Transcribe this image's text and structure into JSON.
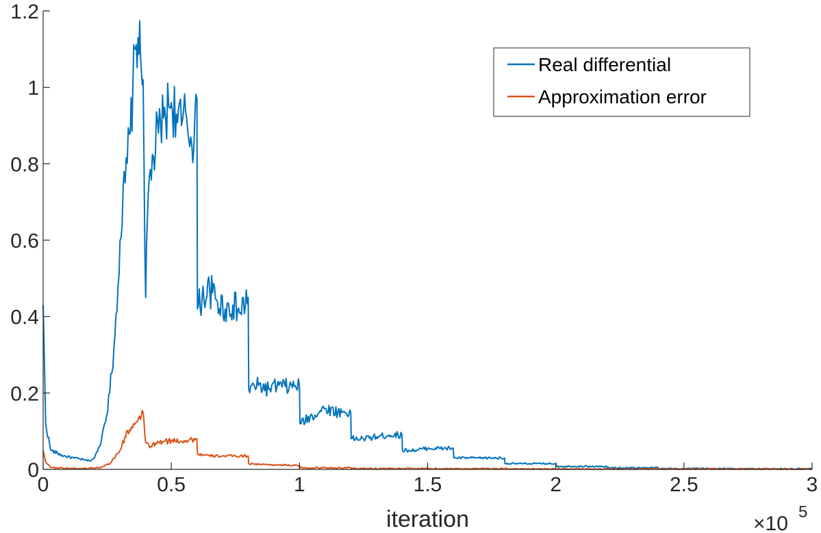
{
  "chart_data": {
    "type": "line",
    "title": "",
    "xlabel": "iteration",
    "ylabel": "",
    "xlim": [
      0,
      300000
    ],
    "ylim": [
      0,
      1.2
    ],
    "x_ticks": [
      0,
      50000,
      100000,
      150000,
      200000,
      250000,
      300000
    ],
    "x_tick_labels": [
      "0",
      "0.5",
      "1",
      "1.5",
      "2",
      "2.5",
      "3"
    ],
    "x_multiplier": {
      "base": "×10",
      "exponent": "5"
    },
    "y_ticks": [
      0,
      0.2,
      0.4,
      0.6,
      0.8,
      1.0,
      1.2
    ],
    "y_tick_labels": [
      "0",
      "0.2",
      "0.4",
      "0.6",
      "0.8",
      "1",
      "1.2"
    ],
    "grid": false,
    "legend_position": "top-right",
    "series": [
      {
        "name": "Real differential",
        "color": "#0072BD",
        "points": [
          [
            0,
            0.43
          ],
          [
            1000,
            0.12
          ],
          [
            3000,
            0.05
          ],
          [
            8000,
            0.035
          ],
          [
            12000,
            0.03
          ],
          [
            16000,
            0.025
          ],
          [
            18000,
            0.022
          ],
          [
            20000,
            0.03
          ],
          [
            22000,
            0.06
          ],
          [
            24000,
            0.12
          ],
          [
            26000,
            0.2
          ],
          [
            28000,
            0.35
          ],
          [
            30000,
            0.6
          ],
          [
            32000,
            0.75
          ],
          [
            34000,
            0.88
          ],
          [
            35000,
            1.0
          ],
          [
            36000,
            1.1
          ],
          [
            37000,
            1.13
          ],
          [
            38000,
            1.08
          ],
          [
            39000,
            1.02
          ],
          [
            40000,
            0.45
          ],
          [
            41000,
            0.72
          ],
          [
            43000,
            0.82
          ],
          [
            45000,
            0.88
          ],
          [
            47000,
            0.92
          ],
          [
            49000,
            0.95
          ],
          [
            50000,
            0.96
          ],
          [
            52000,
            0.93
          ],
          [
            54000,
            0.9
          ],
          [
            56000,
            0.92
          ],
          [
            58000,
            0.85
          ],
          [
            60000,
            0.97
          ],
          [
            60200,
            0.42
          ],
          [
            62000,
            0.45
          ],
          [
            65000,
            0.47
          ],
          [
            68000,
            0.44
          ],
          [
            71000,
            0.42
          ],
          [
            74000,
            0.43
          ],
          [
            77000,
            0.41
          ],
          [
            80000,
            0.45
          ],
          [
            80200,
            0.21
          ],
          [
            84000,
            0.22
          ],
          [
            88000,
            0.21
          ],
          [
            92000,
            0.22
          ],
          [
            96000,
            0.215
          ],
          [
            100000,
            0.22
          ],
          [
            100200,
            0.12
          ],
          [
            105000,
            0.14
          ],
          [
            110000,
            0.16
          ],
          [
            115000,
            0.15
          ],
          [
            120000,
            0.15
          ],
          [
            120200,
            0.08
          ],
          [
            125000,
            0.08
          ],
          [
            130000,
            0.085
          ],
          [
            135000,
            0.09
          ],
          [
            140000,
            0.09
          ],
          [
            140200,
            0.05
          ],
          [
            145000,
            0.05
          ],
          [
            150000,
            0.055
          ],
          [
            155000,
            0.055
          ],
          [
            160000,
            0.055
          ],
          [
            160200,
            0.03
          ],
          [
            170000,
            0.03
          ],
          [
            180000,
            0.03
          ],
          [
            180200,
            0.015
          ],
          [
            190000,
            0.015
          ],
          [
            200000,
            0.015
          ],
          [
            200200,
            0.008
          ],
          [
            210000,
            0.008
          ],
          [
            220000,
            0.007
          ],
          [
            220200,
            0.004
          ],
          [
            240000,
            0.004
          ],
          [
            240200,
            0.002
          ],
          [
            260000,
            0.002
          ],
          [
            280000,
            0.001
          ],
          [
            300000,
            0.001
          ]
        ]
      },
      {
        "name": "Approximation error",
        "color": "#D95319",
        "points": [
          [
            0,
            0.05
          ],
          [
            1000,
            0.02
          ],
          [
            3000,
            0.005
          ],
          [
            8000,
            0.003
          ],
          [
            16000,
            0.002
          ],
          [
            22000,
            0.005
          ],
          [
            26000,
            0.015
          ],
          [
            30000,
            0.05
          ],
          [
            33000,
            0.1
          ],
          [
            36000,
            0.12
          ],
          [
            38000,
            0.13
          ],
          [
            39000,
            0.15
          ],
          [
            40000,
            0.07
          ],
          [
            42000,
            0.06
          ],
          [
            45000,
            0.07
          ],
          [
            50000,
            0.075
          ],
          [
            55000,
            0.075
          ],
          [
            60000,
            0.08
          ],
          [
            60200,
            0.04
          ],
          [
            65000,
            0.035
          ],
          [
            70000,
            0.035
          ],
          [
            75000,
            0.035
          ],
          [
            80000,
            0.035
          ],
          [
            80200,
            0.015
          ],
          [
            85000,
            0.013
          ],
          [
            90000,
            0.012
          ],
          [
            95000,
            0.011
          ],
          [
            100000,
            0.01
          ],
          [
            100200,
            0.004
          ],
          [
            110000,
            0.004
          ],
          [
            120000,
            0.004
          ],
          [
            120200,
            0.002
          ],
          [
            150000,
            0.002
          ],
          [
            200000,
            0.001
          ],
          [
            250000,
            0.001
          ],
          [
            300000,
            0.0005
          ]
        ]
      }
    ]
  }
}
